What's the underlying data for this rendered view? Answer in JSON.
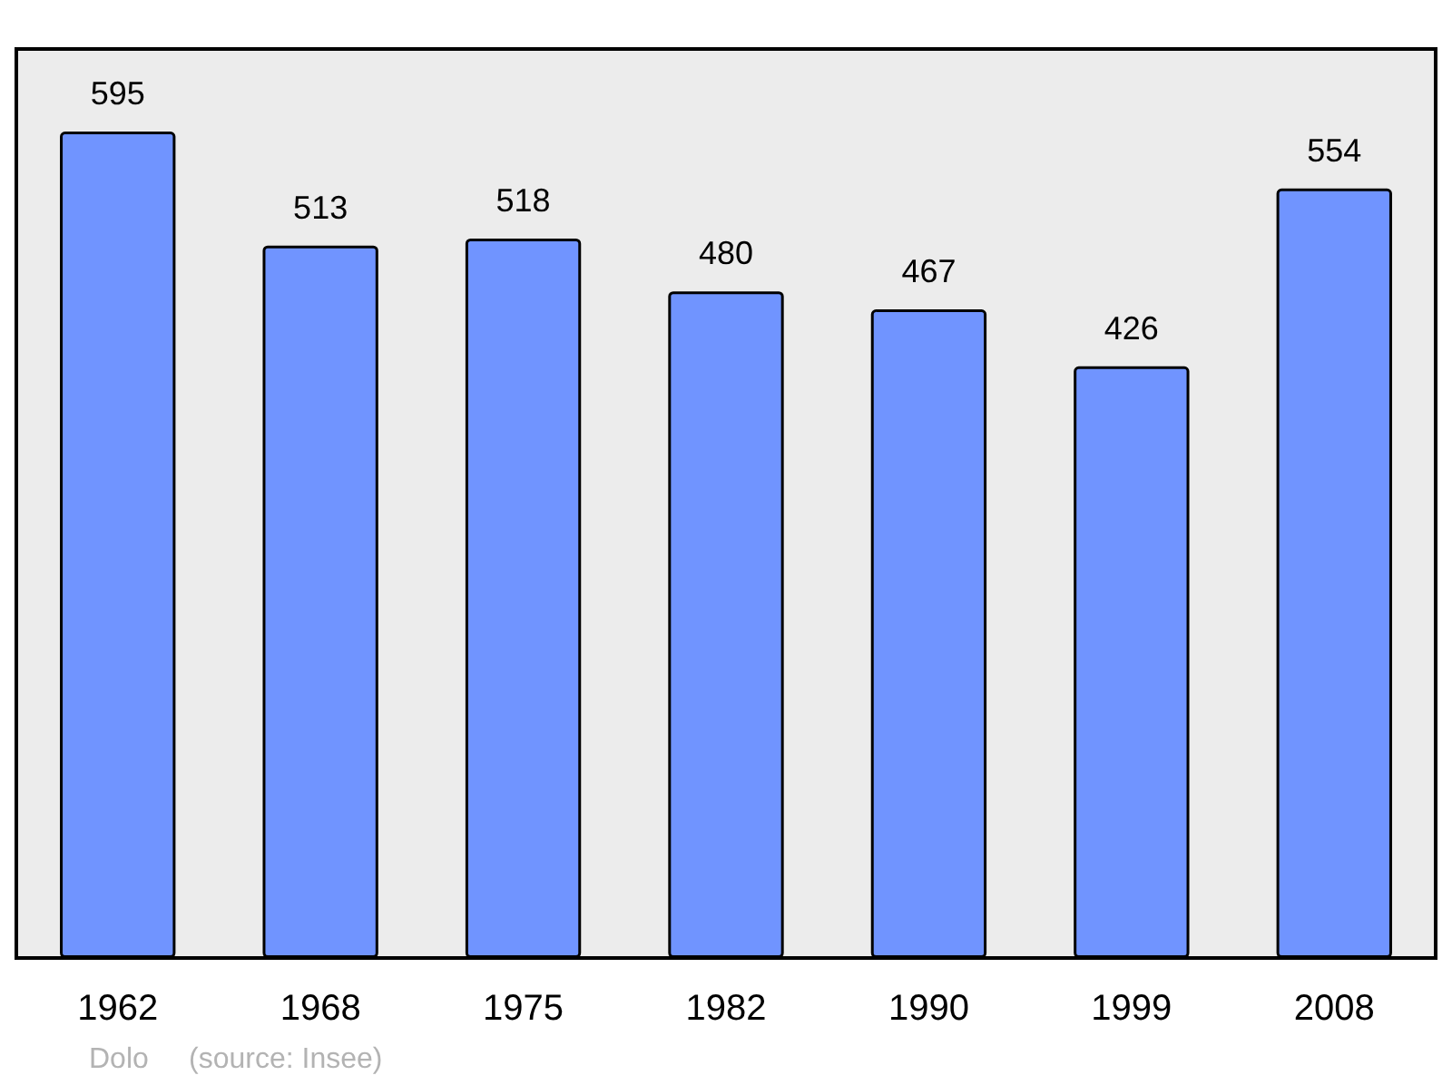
{
  "chart_data": {
    "type": "bar",
    "categories": [
      "1962",
      "1968",
      "1975",
      "1982",
      "1990",
      "1999",
      "2008"
    ],
    "values": [
      595,
      513,
      518,
      480,
      467,
      426,
      554
    ],
    "color": "#7094ff",
    "data_labels": true,
    "annotations": [
      "Dolo",
      "(source: Insee)"
    ]
  }
}
